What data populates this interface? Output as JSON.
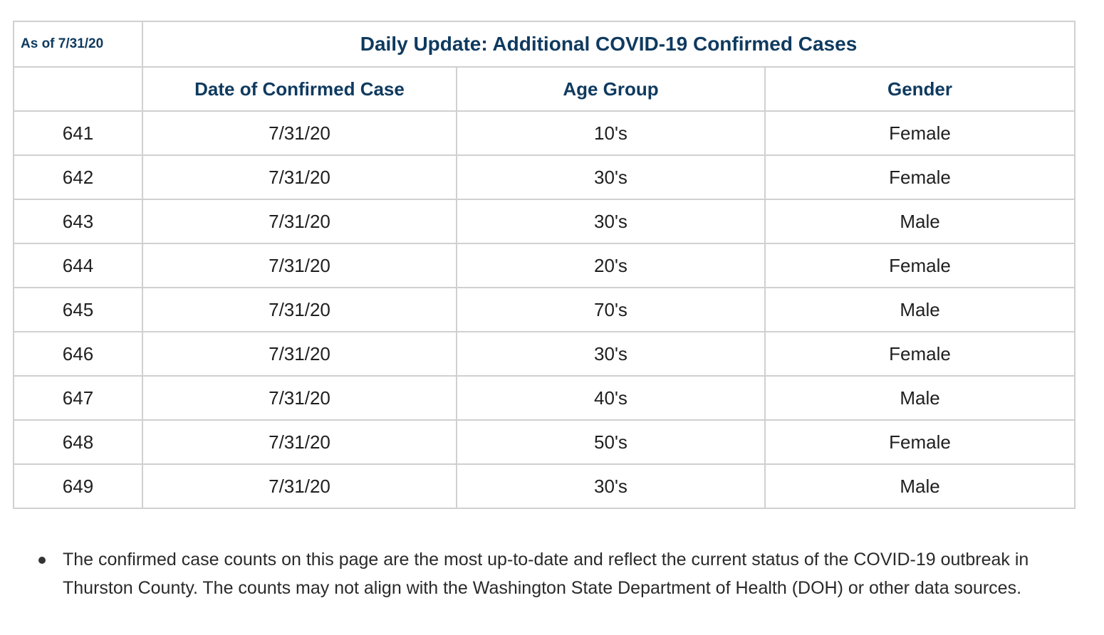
{
  "table": {
    "as_of": "As of 7/31/20",
    "title": "Daily Update: Additional COVID-19 Confirmed Cases",
    "columns": [
      "",
      "Date of Confirmed Case",
      "Age Group",
      "Gender"
    ],
    "rows": [
      [
        "641",
        "7/31/20",
        "10's",
        "Female"
      ],
      [
        "642",
        "7/31/20",
        "30's",
        "Female"
      ],
      [
        "643",
        "7/31/20",
        "30's",
        "Male"
      ],
      [
        "644",
        "7/31/20",
        "20's",
        "Female"
      ],
      [
        "645",
        "7/31/20",
        "70's",
        "Male"
      ],
      [
        "646",
        "7/31/20",
        "30's",
        "Female"
      ],
      [
        "647",
        "7/31/20",
        "40's",
        "Male"
      ],
      [
        "648",
        "7/31/20",
        "50's",
        "Female"
      ],
      [
        "649",
        "7/31/20",
        "30's",
        "Male"
      ]
    ]
  },
  "notes": [
    "The confirmed case counts on this page are the most up-to-date and reflect the current status of the COVID-19 outbreak in Thurston County. The counts may not align with the Washington State Department of Health (DOH) or other data sources."
  ],
  "colors": {
    "heading": "#0f3a5f",
    "border": "#d0d0d0",
    "text": "#1f1f1f"
  }
}
